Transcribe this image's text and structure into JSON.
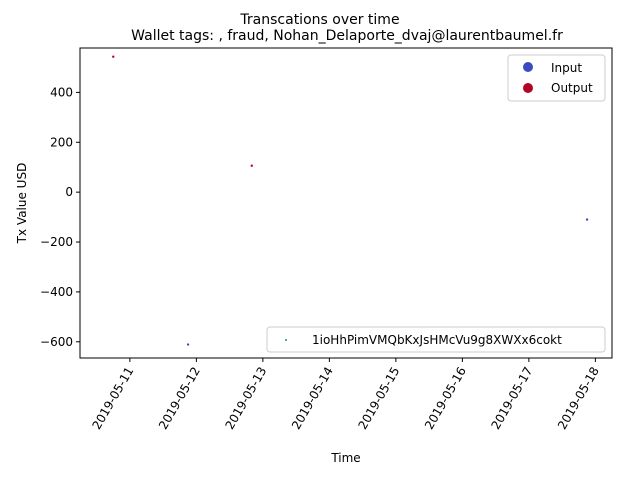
{
  "chart_data": {
    "type": "scatter",
    "title": "Transcations over time",
    "subtitle": "Wallet tags: , fraud, Nohan_Delaporte_dvaj@laurentbaumel.fr",
    "xlabel": "Time",
    "ylabel": "Tx Value USD",
    "xlim": [
      "2019-05-10 06:00",
      "2019-05-18 06:00"
    ],
    "ylim": [
      -665,
      578
    ],
    "x_ticks": [
      "2019-05-11",
      "2019-05-12",
      "2019-05-13",
      "2019-05-14",
      "2019-05-15",
      "2019-05-16",
      "2019-05-17",
      "2019-05-18"
    ],
    "y_ticks": [
      400,
      200,
      0,
      -200,
      -400,
      -600
    ],
    "y_tick_labels": [
      "400",
      "200",
      "0",
      "−200",
      "−400",
      "−600"
    ],
    "grid": false,
    "legend_position": "upper right",
    "legend_entries": [
      {
        "name": "Input",
        "color": "#3b4cc0"
      },
      {
        "name": "Output",
        "color": "#b40426"
      }
    ],
    "series_legend_position": "lower right",
    "series": [
      {
        "name": "1ioHhPimVMQbKxJsHMcVu9g8XWXx6cokt",
        "color": "#2e8b57",
        "points": [
          {
            "x": "2019-05-10 18:00",
            "y": 543,
            "type": "Output"
          },
          {
            "x": "2019-05-11 21:00",
            "y": -611,
            "type": "Input"
          },
          {
            "x": "2019-05-12 20:00",
            "y": 106,
            "type": "Output"
          },
          {
            "x": "2019-05-17 21:00",
            "y": -110,
            "type": "Input"
          }
        ]
      }
    ]
  }
}
